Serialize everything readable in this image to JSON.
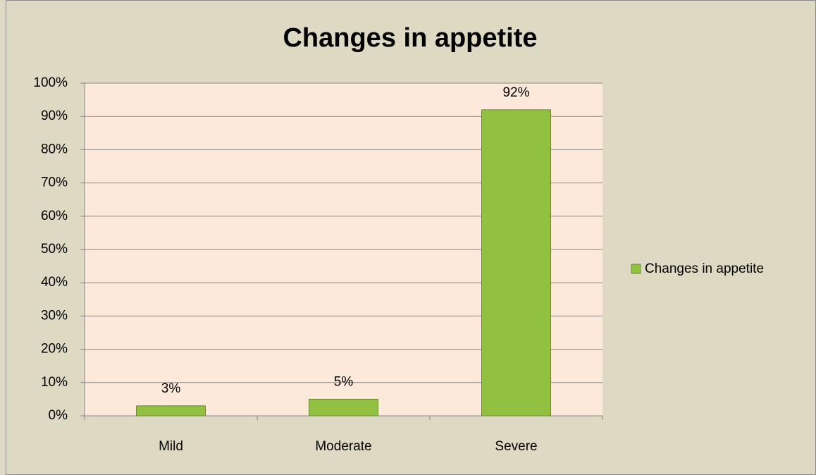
{
  "chart_data": {
    "type": "bar",
    "title": "Changes in appetite",
    "categories": [
      "Mild",
      "Moderate",
      "Severe"
    ],
    "series": [
      {
        "name": "Changes in appetite",
        "color": "#92c040",
        "values": [
          3,
          5,
          92
        ],
        "value_labels": [
          "3%",
          "5%",
          "92%"
        ]
      }
    ],
    "ylim": [
      0,
      100
    ],
    "yticks": [
      {
        "value": 0,
        "label": "0%"
      },
      {
        "value": 10,
        "label": "10%"
      },
      {
        "value": 20,
        "label": "20%"
      },
      {
        "value": 30,
        "label": "30%"
      },
      {
        "value": 40,
        "label": "40%"
      },
      {
        "value": 50,
        "label": "50%"
      },
      {
        "value": 60,
        "label": "60%"
      },
      {
        "value": 70,
        "label": "70%"
      },
      {
        "value": 80,
        "label": "80%"
      },
      {
        "value": 90,
        "label": "90%"
      },
      {
        "value": 100,
        "label": "100%"
      }
    ],
    "grid": true,
    "legend": "right"
  }
}
